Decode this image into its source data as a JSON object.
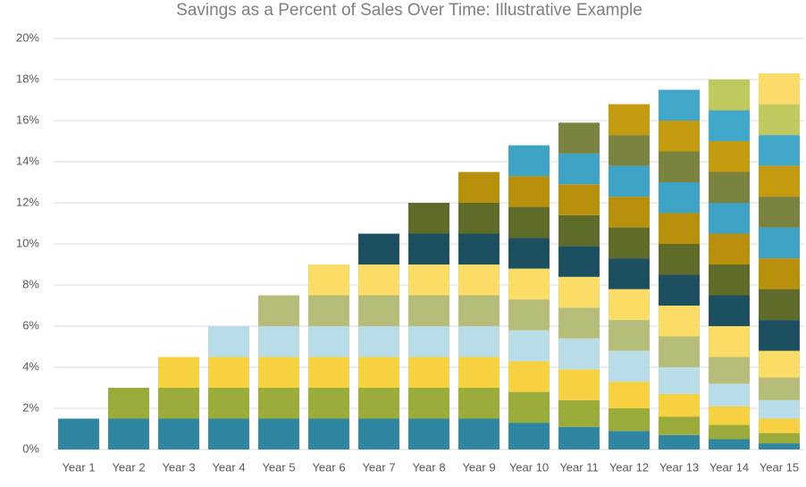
{
  "chart_data": {
    "type": "stacked-bar",
    "title": "Savings as a Percent of Sales Over Time: Illustrative Example",
    "categories": [
      "Year 1",
      "Year 2",
      "Year 3",
      "Year 4",
      "Year 5",
      "Year 6",
      "Year 7",
      "Year 8",
      "Year 9",
      "Year 10",
      "Year 11",
      "Year 12",
      "Year 13",
      "Year 14",
      "Year 15"
    ],
    "series": [
      {
        "color": "#2e86a0",
        "values": [
          1.5,
          1.5,
          1.5,
          1.5,
          1.5,
          1.5,
          1.5,
          1.5,
          1.5,
          1.3,
          1.1,
          0.9,
          0.7,
          0.5,
          0.3
        ]
      },
      {
        "color": "#9aab3a",
        "values": [
          null,
          1.5,
          1.5,
          1.5,
          1.5,
          1.5,
          1.5,
          1.5,
          1.5,
          1.5,
          1.3,
          1.1,
          0.9,
          0.7,
          0.5
        ]
      },
      {
        "color": "#f8d143",
        "values": [
          null,
          null,
          1.5,
          1.5,
          1.5,
          1.5,
          1.5,
          1.5,
          1.5,
          1.5,
          1.5,
          1.3,
          1.1,
          0.9,
          0.7
        ]
      },
      {
        "color": "#b9dde8",
        "values": [
          null,
          null,
          null,
          1.5,
          1.5,
          1.5,
          1.5,
          1.5,
          1.5,
          1.5,
          1.5,
          1.5,
          1.3,
          1.1,
          0.9
        ]
      },
      {
        "color": "#b5bd78",
        "values": [
          null,
          null,
          null,
          null,
          1.5,
          1.5,
          1.5,
          1.5,
          1.5,
          1.5,
          1.5,
          1.5,
          1.5,
          1.3,
          1.1
        ]
      },
      {
        "color": "#fadc66",
        "values": [
          null,
          null,
          null,
          null,
          null,
          1.5,
          1.5,
          1.5,
          1.5,
          1.5,
          1.5,
          1.5,
          1.5,
          1.5,
          1.3
        ]
      },
      {
        "color": "#1c4f5f",
        "values": [
          null,
          null,
          null,
          null,
          null,
          null,
          1.5,
          1.5,
          1.5,
          1.5,
          1.5,
          1.5,
          1.5,
          1.5,
          1.5
        ]
      },
      {
        "color": "#5f6b28",
        "values": [
          null,
          null,
          null,
          null,
          null,
          null,
          null,
          1.5,
          1.5,
          1.5,
          1.5,
          1.5,
          1.5,
          1.5,
          1.5
        ]
      },
      {
        "color": "#b8900b",
        "values": [
          null,
          null,
          null,
          null,
          null,
          null,
          null,
          null,
          1.5,
          1.5,
          1.5,
          1.5,
          1.5,
          1.5,
          1.5
        ]
      },
      {
        "color": "#3ea3c4",
        "values": [
          null,
          null,
          null,
          null,
          null,
          null,
          null,
          null,
          null,
          1.5,
          1.5,
          1.5,
          1.5,
          1.5,
          1.5
        ]
      },
      {
        "color": "#7a8240",
        "values": [
          null,
          null,
          null,
          null,
          null,
          null,
          null,
          null,
          null,
          null,
          1.5,
          1.5,
          1.5,
          1.5,
          1.5
        ]
      },
      {
        "color": "#c49a0e",
        "values": [
          null,
          null,
          null,
          null,
          null,
          null,
          null,
          null,
          null,
          null,
          null,
          1.5,
          1.5,
          1.5,
          1.5
        ]
      },
      {
        "color": "#41a7c9",
        "values": [
          null,
          null,
          null,
          null,
          null,
          null,
          null,
          null,
          null,
          null,
          null,
          null,
          1.5,
          1.5,
          1.5
        ]
      },
      {
        "color": "#bfc95e",
        "values": [
          null,
          null,
          null,
          null,
          null,
          null,
          null,
          null,
          null,
          null,
          null,
          null,
          null,
          1.5,
          1.5
        ]
      },
      {
        "color": "#fbdc6a",
        "values": [
          null,
          null,
          null,
          null,
          null,
          null,
          null,
          null,
          null,
          null,
          null,
          null,
          null,
          null,
          1.5
        ]
      }
    ],
    "ylim": [
      0,
      20
    ],
    "yticks": [
      {
        "value": 0,
        "label": "0%"
      },
      {
        "value": 2,
        "label": "2%"
      },
      {
        "value": 4,
        "label": "4%"
      },
      {
        "value": 6,
        "label": "6%"
      },
      {
        "value": 8,
        "label": "8%"
      },
      {
        "value": 10,
        "label": "10%"
      },
      {
        "value": 12,
        "label": "12%"
      },
      {
        "value": 14,
        "label": "14%"
      },
      {
        "value": 16,
        "label": "16%"
      },
      {
        "value": 18,
        "label": "18%"
      },
      {
        "value": 20,
        "label": "20%"
      }
    ],
    "grid": true
  }
}
